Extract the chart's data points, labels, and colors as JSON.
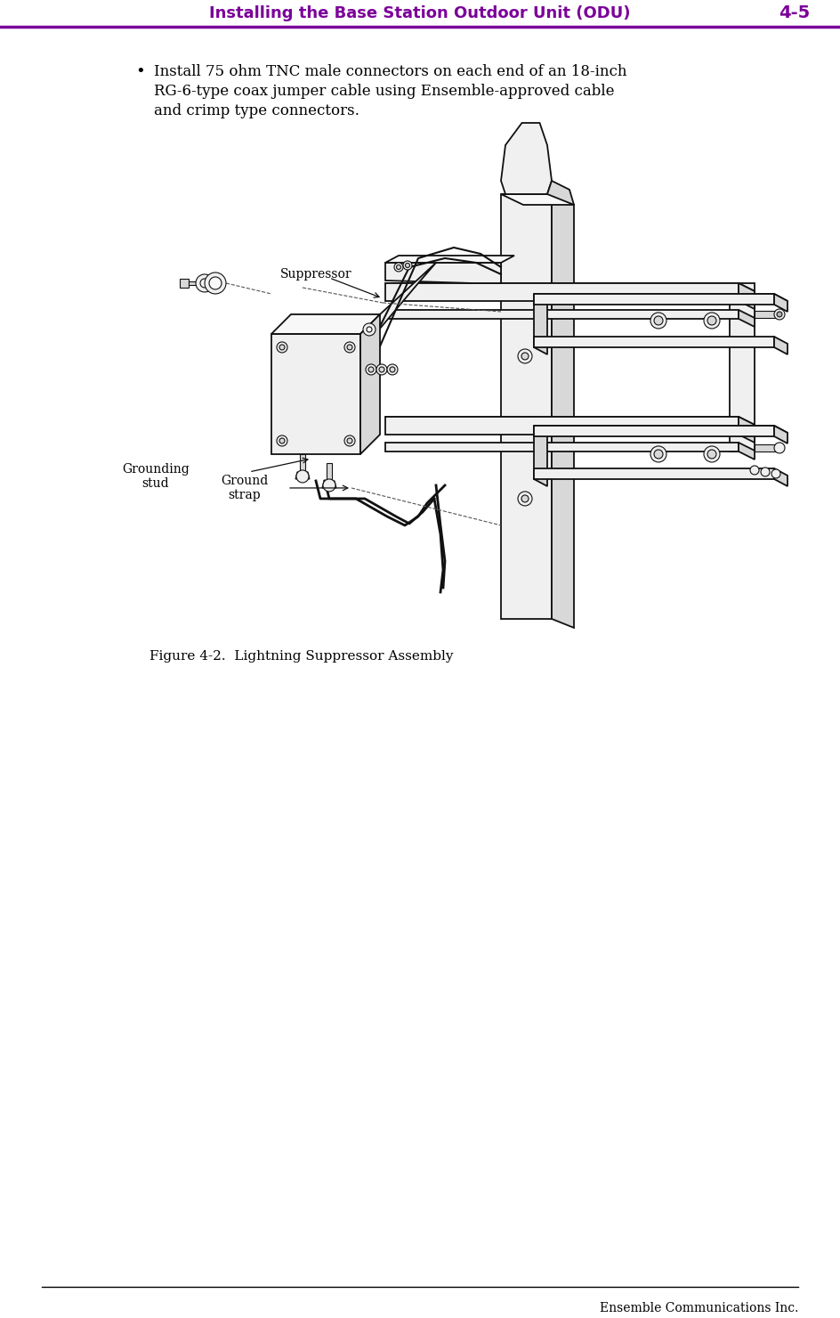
{
  "header_text": "Installing the Base Station Outdoor Unit (ODU)",
  "header_page": "4-5",
  "header_color": "#7B0099",
  "header_line_color": "#7B0099",
  "bullet_text_line1": "Install 75 ohm TNC male connectors on each end of an 18-inch",
  "bullet_text_line2": "RG-6-type coax jumper cable using Ensemble-approved cable",
  "bullet_text_line3": "and crimp type connectors.",
  "figure_caption": "Figure 4-2.  Lightning Suppressor Assembly",
  "footer_text": "Ensemble Communications Inc.",
  "footer_line_color": "#000000",
  "bg_color": "#ffffff",
  "text_color": "#000000",
  "label_suppressor": "Suppressor",
  "label_grounding_stud": "Grounding\nstud",
  "label_ground_strap": "Ground\nstrap",
  "line_color": "#111111",
  "fill_light": "#f0f0f0",
  "fill_mid": "#d8d8d8",
  "fill_dark": "#b0b0b0"
}
